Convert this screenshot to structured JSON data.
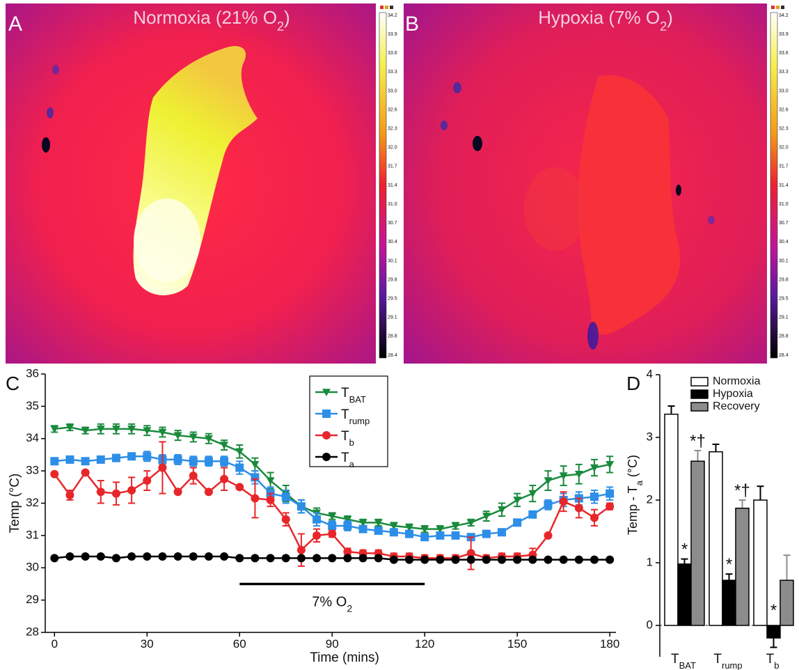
{
  "images": [
    {
      "label": "A",
      "title": [
        "Normoxia (21% O",
        "2",
        ")"
      ]
    },
    {
      "label": "B",
      "title": [
        "Hypoxia (7% O",
        "2",
        ")"
      ]
    }
  ],
  "colorbar_labels": [
    "34.2",
    "33.9",
    "33.6",
    "33.3",
    "33.0",
    "32.6",
    "32.3",
    "32.0",
    "31.7",
    "31.4",
    "31.0",
    "30.7",
    "30.4",
    "30.1",
    "29.8",
    "29.5",
    "29.1",
    "28.8",
    "28.4"
  ],
  "chart_data": [
    {
      "type": "line",
      "panel": "C",
      "x_label": "Time (mins)",
      "y_label": "Temp (°C)",
      "x": [
        0,
        5,
        10,
        15,
        20,
        25,
        30,
        35,
        40,
        45,
        50,
        55,
        60,
        65,
        70,
        75,
        80,
        85,
        90,
        95,
        100,
        105,
        110,
        115,
        120,
        125,
        130,
        135,
        140,
        145,
        150,
        155,
        160,
        165,
        170,
        175,
        180
      ],
      "xlim": [
        -3,
        182
      ],
      "xticks": [
        0,
        30,
        60,
        90,
        120,
        150,
        180
      ],
      "ylim": [
        28,
        36
      ],
      "yticks": [
        28,
        29,
        30,
        31,
        32,
        33,
        34,
        35,
        36
      ],
      "series": [
        {
          "name": [
            "T",
            "BAT"
          ],
          "color": "#1a8a3c",
          "marker": "triangle-down",
          "values": [
            34.3,
            34.35,
            34.25,
            34.3,
            34.3,
            34.3,
            34.25,
            34.2,
            34.1,
            34.05,
            34.0,
            33.8,
            33.6,
            33.2,
            32.7,
            32.3,
            31.9,
            31.7,
            31.6,
            31.5,
            31.4,
            31.4,
            31.3,
            31.25,
            31.2,
            31.2,
            31.3,
            31.4,
            31.6,
            31.8,
            32.1,
            32.3,
            32.7,
            32.85,
            32.9,
            33.1,
            33.2
          ],
          "errors": [
            0.1,
            0.1,
            0.1,
            0.15,
            0.15,
            0.15,
            0.15,
            0.15,
            0.15,
            0.15,
            0.15,
            0.15,
            0.2,
            0.2,
            0.25,
            0.25,
            0.2,
            0.15,
            0.1,
            0.1,
            0.1,
            0.1,
            0.1,
            0.1,
            0.1,
            0.1,
            0.1,
            0.1,
            0.15,
            0.2,
            0.2,
            0.25,
            0.3,
            0.3,
            0.3,
            0.25,
            0.25
          ]
        },
        {
          "name": [
            "T",
            "rump"
          ],
          "color": "#2d8ee8",
          "marker": "square",
          "values": [
            33.3,
            33.35,
            33.3,
            33.35,
            33.4,
            33.45,
            33.45,
            33.35,
            33.35,
            33.3,
            33.3,
            33.3,
            33.1,
            32.8,
            32.3,
            32.2,
            31.9,
            31.5,
            31.3,
            31.3,
            31.2,
            31.15,
            31.1,
            31.05,
            30.95,
            31.0,
            31.0,
            30.95,
            31.05,
            31.1,
            31.4,
            31.65,
            31.95,
            32.1,
            32.15,
            32.2,
            32.3
          ],
          "errors": [
            0.1,
            0.05,
            0.05,
            0.05,
            0.05,
            0.1,
            0.15,
            0.15,
            0.15,
            0.15,
            0.15,
            0.15,
            0.2,
            0.2,
            0.2,
            0.2,
            0.2,
            0.2,
            0.15,
            0.15,
            0.1,
            0.1,
            0.1,
            0.1,
            0.1,
            0.05,
            0.05,
            0.05,
            0.05,
            0.05,
            0.05,
            0.1,
            0.15,
            0.2,
            0.2,
            0.2,
            0.2
          ]
        },
        {
          "name": [
            "T",
            "b"
          ],
          "color": "#e8262a",
          "marker": "circle",
          "values": [
            32.9,
            32.25,
            32.95,
            32.35,
            32.3,
            32.4,
            32.7,
            33.1,
            32.35,
            32.85,
            32.35,
            32.75,
            32.5,
            32.15,
            32.1,
            31.5,
            30.55,
            31.0,
            31.05,
            30.5,
            30.45,
            30.45,
            30.35,
            30.35,
            30.3,
            30.3,
            30.3,
            30.45,
            30.3,
            30.35,
            30.35,
            30.4,
            31.0,
            32.05,
            31.85,
            31.55,
            31.9
          ],
          "errors": [
            0.05,
            0.15,
            0.05,
            0.35,
            0.35,
            0.4,
            0.3,
            0.8,
            0.05,
            0.25,
            0.05,
            0.35,
            0.05,
            0.6,
            0.2,
            0.2,
            0.5,
            0.2,
            0.1,
            0.1,
            0.1,
            0.1,
            0.1,
            0.1,
            0.1,
            0.1,
            0.1,
            0.5,
            0.1,
            0.1,
            0.1,
            0.2,
            0.05,
            0.3,
            0.3,
            0.25,
            0.1
          ]
        },
        {
          "name": [
            "T",
            "a"
          ],
          "color": "#000000",
          "marker": "circle",
          "values": [
            30.3,
            30.35,
            30.35,
            30.35,
            30.3,
            30.35,
            30.35,
            30.35,
            30.35,
            30.35,
            30.35,
            30.35,
            30.3,
            30.3,
            30.3,
            30.3,
            30.3,
            30.3,
            30.3,
            30.3,
            30.3,
            30.3,
            30.25,
            30.25,
            30.25,
            30.25,
            30.25,
            30.25,
            30.25,
            30.25,
            30.25,
            30.25,
            30.25,
            30.25,
            30.25,
            30.25,
            30.25
          ],
          "errors": [
            0.05,
            0.05,
            0.05,
            0.05,
            0.05,
            0.05,
            0.05,
            0.05,
            0.05,
            0.05,
            0.05,
            0.05,
            0.05,
            0.05,
            0.05,
            0.05,
            0.05,
            0.05,
            0.05,
            0.05,
            0.05,
            0.05,
            0.05,
            0.05,
            0.05,
            0.05,
            0.05,
            0.05,
            0.05,
            0.05,
            0.05,
            0.05,
            0.05,
            0.05,
            0.05,
            0.05,
            0.05
          ]
        }
      ],
      "annotation": {
        "text": [
          "7% O",
          "2"
        ],
        "x": [
          60,
          120
        ],
        "y": 29.5
      }
    },
    {
      "type": "bar",
      "panel": "D",
      "y_label": [
        "Temp - T",
        "a",
        " (°C)"
      ],
      "categories": [
        [
          "T",
          "BAT"
        ],
        [
          "T",
          "rump"
        ],
        [
          "T",
          "b"
        ]
      ],
      "ylim": [
        -0.5,
        4
      ],
      "yticks": [
        0,
        1,
        2,
        3,
        4
      ],
      "series": [
        {
          "name": "Normoxia",
          "color": "#ffffff",
          "values": [
            3.37,
            2.77,
            2.0
          ],
          "errors": [
            0.13,
            0.12,
            0.22
          ],
          "markers": [
            null,
            null,
            null
          ]
        },
        {
          "name": "Hypoxia",
          "color": "#000000",
          "values": [
            0.98,
            0.72,
            -0.2
          ],
          "errors": [
            0.08,
            0.1,
            0.15
          ],
          "markers": [
            "*",
            "*",
            "*"
          ]
        },
        {
          "name": "Recovery",
          "color": "#8c8c8c",
          "values": [
            2.62,
            1.87,
            0.72
          ],
          "errors": [
            0.17,
            0.13,
            0.4
          ],
          "markers": [
            "*†",
            "*†",
            null
          ]
        }
      ]
    }
  ]
}
